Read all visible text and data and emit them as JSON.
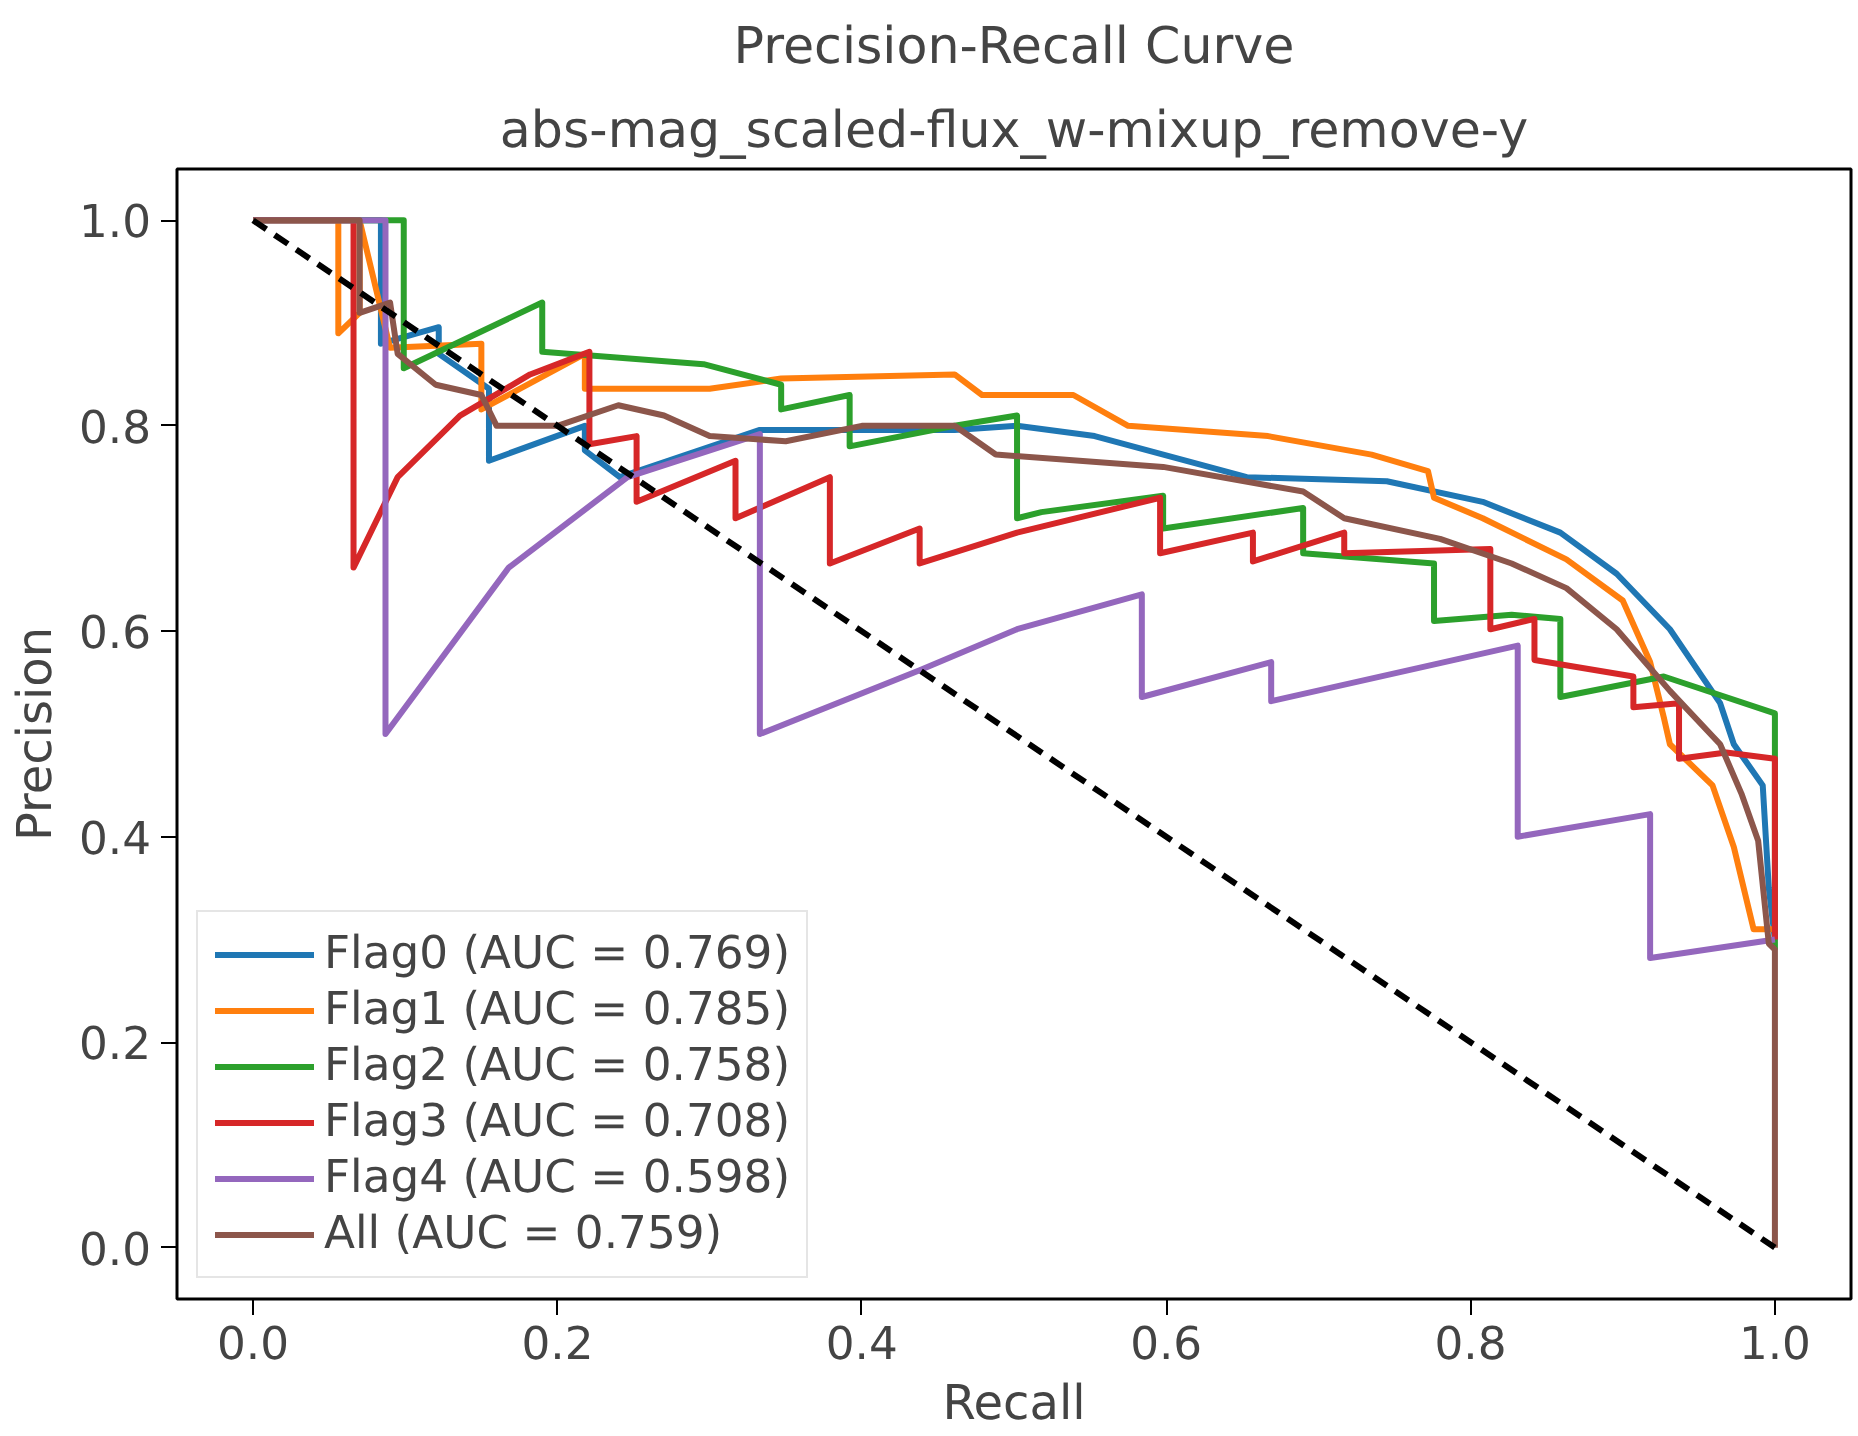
{
  "chart_data": {
    "type": "line",
    "title": "Precision-Recall Curve",
    "subtitle": "abs-mag_scaled-flux_w-mixup_remove-y",
    "xlabel": "Recall",
    "ylabel": "Precision",
    "xlim": [
      -0.05,
      1.05
    ],
    "ylim": [
      -0.05,
      1.05
    ],
    "xticks": [
      {
        "value": 0,
        "label": "0.0"
      },
      {
        "value": 0.2,
        "label": "0.2"
      },
      {
        "value": 0.4,
        "label": "0.4"
      },
      {
        "value": 0.6,
        "label": "0.6"
      },
      {
        "value": 0.8,
        "label": "0.8"
      },
      {
        "value": 1,
        "label": "1.0"
      }
    ],
    "yticks": [
      {
        "value": 0,
        "label": "0.0"
      },
      {
        "value": 0.2,
        "label": "0.2"
      },
      {
        "value": 0.4,
        "label": "0.4"
      },
      {
        "value": 0.6,
        "label": "0.6"
      },
      {
        "value": 0.8,
        "label": "0.8"
      },
      {
        "value": 1,
        "label": "1.0"
      }
    ],
    "grid": false,
    "legend": "bottom left",
    "line_style": "solid",
    "series": [
      {
        "name": "Flag0 (AUC = 0.769)",
        "color": "#1f77b4",
        "x": [
          0,
          0.084,
          0.084,
          0.122,
          0.122,
          0.155,
          0.155,
          0.218,
          0.218,
          0.241,
          0.333,
          0.461,
          0.502,
          0.553,
          0.653,
          0.745,
          0.808,
          0.859,
          0.896,
          0.931,
          0.964,
          0.973,
          0.992,
          0.996,
          1.0
        ],
        "values": [
          1,
          1,
          0.88,
          0.896,
          0.87,
          0.836,
          0.766,
          0.8,
          0.776,
          0.75,
          0.796,
          0.796,
          0.8,
          0.79,
          0.75,
          0.746,
          0.726,
          0.696,
          0.656,
          0.602,
          0.53,
          0.49,
          0.45,
          0.35,
          0.3
        ]
      },
      {
        "name": "Flag1 (AUC = 0.785)",
        "color": "#ff7f0e",
        "x": [
          0,
          0.056,
          0.056,
          0.07,
          0.07,
          0.09,
          0.15,
          0.15,
          0.218,
          0.218,
          0.3,
          0.347,
          0.461,
          0.479,
          0.539,
          0.575,
          0.667,
          0.735,
          0.772,
          0.776,
          0.808,
          0.863,
          0.9,
          0.918,
          0.927,
          0.931,
          0.959,
          0.973,
          0.986,
          1.0
        ],
        "values": [
          1,
          1,
          0.89,
          0.91,
          1,
          0.876,
          0.88,
          0.816,
          0.87,
          0.836,
          0.836,
          0.846,
          0.85,
          0.83,
          0.83,
          0.8,
          0.79,
          0.772,
          0.756,
          0.73,
          0.71,
          0.67,
          0.63,
          0.57,
          0.516,
          0.49,
          0.45,
          0.39,
          0.31,
          0.31
        ]
      },
      {
        "name": "Flag2 (AUC = 0.758)",
        "color": "#2ca02c",
        "x": [
          0,
          0.099,
          0.099,
          0.19,
          0.19,
          0.296,
          0.347,
          0.347,
          0.392,
          0.392,
          0.461,
          0.502,
          0.502,
          0.518,
          0.598,
          0.598,
          0.69,
          0.69,
          0.776,
          0.776,
          0.827,
          0.859,
          0.859,
          0.927,
          1.0,
          1.0
        ],
        "values": [
          1,
          1,
          0.856,
          0.92,
          0.872,
          0.86,
          0.84,
          0.816,
          0.83,
          0.78,
          0.8,
          0.81,
          0.71,
          0.716,
          0.732,
          0.7,
          0.72,
          0.676,
          0.666,
          0.61,
          0.616,
          0.612,
          0.536,
          0.556,
          0.52,
          0.29
        ]
      },
      {
        "name": "Flag3 (AUC = 0.708)",
        "color": "#d62728",
        "x": [
          0,
          0.066,
          0.066,
          0.095,
          0.136,
          0.182,
          0.221,
          0.221,
          0.252,
          0.252,
          0.317,
          0.317,
          0.379,
          0.379,
          0.438,
          0.438,
          0.502,
          0.596,
          0.596,
          0.657,
          0.657,
          0.717,
          0.717,
          0.813,
          0.813,
          0.842,
          0.842,
          0.907,
          0.907,
          0.937,
          0.937,
          0.968,
          1.0,
          1.0
        ],
        "values": [
          1,
          1,
          0.662,
          0.75,
          0.81,
          0.85,
          0.872,
          0.782,
          0.79,
          0.726,
          0.766,
          0.71,
          0.75,
          0.666,
          0.7,
          0.666,
          0.696,
          0.73,
          0.676,
          0.696,
          0.668,
          0.696,
          0.676,
          0.68,
          0.602,
          0.612,
          0.572,
          0.556,
          0.526,
          0.53,
          0.476,
          0.482,
          0.476,
          0.3
        ]
      },
      {
        "name": "Flag4 (AUC = 0.598)",
        "color": "#9467bd",
        "x": [
          0,
          0.087,
          0.087,
          0.168,
          0.246,
          0.333,
          0.333,
          0.438,
          0.502,
          0.584,
          0.584,
          0.669,
          0.669,
          0.831,
          0.831,
          0.918,
          0.918,
          1.0
        ],
        "values": [
          1,
          1,
          0.5,
          0.662,
          0.75,
          0.792,
          0.5,
          0.562,
          0.602,
          0.636,
          0.536,
          0.57,
          0.532,
          0.586,
          0.4,
          0.422,
          0.282,
          0.3
        ]
      },
      {
        "name": "All (AUC = 0.759)",
        "color": "#8c564b",
        "x": [
          0,
          0.07,
          0.07,
          0.09,
          0.095,
          0.12,
          0.15,
          0.16,
          0.2,
          0.24,
          0.27,
          0.3,
          0.35,
          0.4,
          0.461,
          0.488,
          0.598,
          0.69,
          0.717,
          0.78,
          0.827,
          0.863,
          0.896,
          0.931,
          0.964,
          0.978,
          0.989,
          0.996,
          1.0,
          1.0
        ],
        "values": [
          1,
          1,
          0.91,
          0.92,
          0.87,
          0.84,
          0.83,
          0.8,
          0.8,
          0.82,
          0.81,
          0.79,
          0.785,
          0.8,
          0.8,
          0.772,
          0.76,
          0.736,
          0.71,
          0.69,
          0.666,
          0.642,
          0.602,
          0.542,
          0.49,
          0.442,
          0.396,
          0.296,
          0.29,
          0.0
        ]
      },
      {
        "color": "#000000",
        "line_style": "dashed",
        "x": [
          0,
          1
        ],
        "values": [
          1,
          0
        ]
      }
    ]
  }
}
